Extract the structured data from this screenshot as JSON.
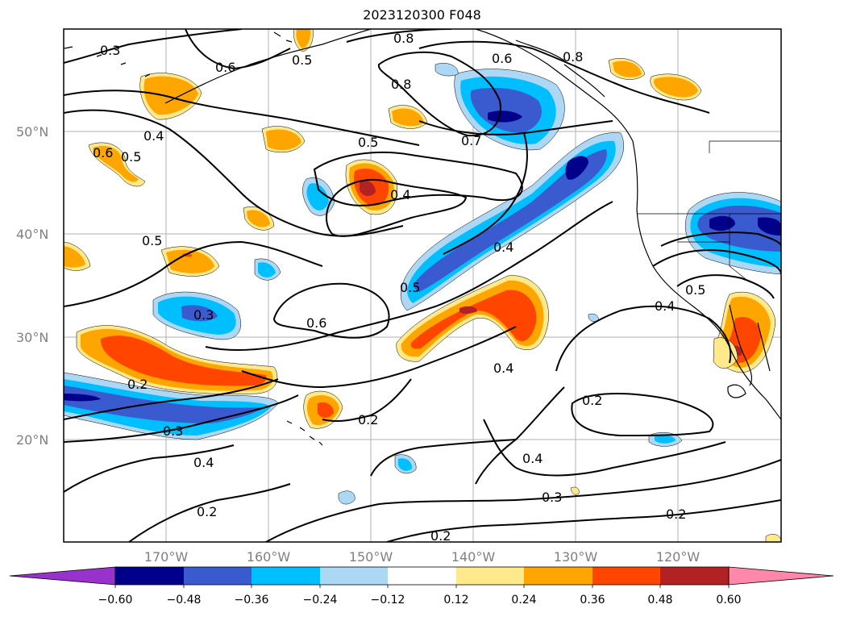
{
  "title": "2023120300 F048",
  "axes": {
    "lat_ticks": [
      "50°N",
      "40°N",
      "30°N",
      "20°N"
    ],
    "lon_ticks": [
      "170°W",
      "160°W",
      "150°W",
      "140°W",
      "130°W",
      "120°W"
    ]
  },
  "colorbar": {
    "tick_labels": [
      "−0.60",
      "−0.48",
      "−0.36",
      "−0.24",
      "−0.12",
      "0.12",
      "0.24",
      "0.36",
      "0.48",
      "0.60"
    ],
    "colors": [
      "#9932cc",
      "#00008b",
      "#3a5bcf",
      "#00bfff",
      "#add8f5",
      "#ffffff",
      "#ffe98a",
      "#ffa500",
      "#ff4500",
      "#b22222",
      "#ff88aa"
    ]
  },
  "contour_labels": [
    "0.3",
    "0.6",
    "0.5",
    "0.8",
    "0.6",
    "0.8",
    "0.8",
    "0.7",
    "0.5",
    "0.4",
    "0.6",
    "0.5",
    "0.4",
    "0.5",
    "0.3",
    "0.6",
    "0.5",
    "0.4",
    "0.4",
    "0.5",
    "0.4",
    "0.2",
    "0.2",
    "0.3",
    "0.4",
    "0.2",
    "0.2",
    "0.4",
    "0.3",
    "0.2",
    "0.2"
  ]
}
